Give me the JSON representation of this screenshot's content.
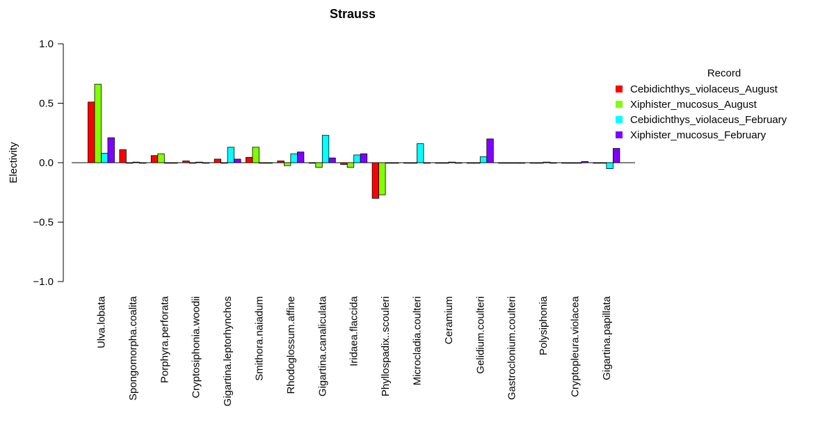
{
  "chart_data": {
    "type": "bar",
    "title": "Strauss",
    "xlabel": "",
    "ylabel": "Electivity",
    "ylim": [
      -1.0,
      1.0
    ],
    "yticks": [
      "-1.0",
      "-0.5",
      "0.0",
      "0.5",
      "1.0"
    ],
    "grid": false,
    "legend": {
      "title": "Record",
      "placement": "right"
    },
    "categories": [
      "Ulva.lobata",
      "Spongomorpha.coalita",
      "Porphyra.perforata",
      "Cryptosiphonia.woodii",
      "Gigartina.leptorhynchos",
      "Smithora.naiadum",
      "Rhodoglossum.affine",
      "Gigartina.canaliculata",
      "Iridaea.flaccida",
      "Phyllospadix..scouleri",
      "Microcladia.coulteri",
      "Ceramium",
      "Gelidium.coulteri",
      "Gastroclonium.coulteri",
      "Polysiphonia",
      "Cryptopleura.violacea",
      "Gigartina.papillata"
    ],
    "series": [
      {
        "name": "Cebidichthys_violaceus_August",
        "color": "#ff0000",
        "values": [
          0.51,
          0.11,
          0.06,
          0.015,
          0.03,
          0.045,
          0.015,
          0.0,
          -0.015,
          -0.3,
          0.0,
          0.0,
          0.0,
          0.0,
          0.0,
          0.0,
          0.0
        ]
      },
      {
        "name": "Xiphister_mucosus_August",
        "color": "#80ff00",
        "values": [
          0.66,
          0.0,
          0.075,
          0.0,
          0.0,
          0.13,
          -0.025,
          -0.04,
          -0.04,
          -0.27,
          0.0,
          0.0,
          0.0,
          0.0,
          0.0,
          0.0,
          0.0
        ]
      },
      {
        "name": "Cebidichthys_violaceus_February",
        "color": "#00ffff",
        "values": [
          0.08,
          0.005,
          0.0,
          0.005,
          0.13,
          0.0,
          0.075,
          0.23,
          0.065,
          0.0,
          0.16,
          0.005,
          0.05,
          0.0,
          0.005,
          0.0,
          -0.05
        ]
      },
      {
        "name": "Xiphister_mucosus_February",
        "color": "#8000ff",
        "values": [
          0.21,
          0.0,
          0.0,
          0.0,
          0.03,
          0.0,
          0.09,
          0.04,
          0.075,
          0.0,
          0.0,
          0.0,
          0.2,
          -0.005,
          0.0,
          0.01,
          0.12
        ]
      }
    ]
  }
}
